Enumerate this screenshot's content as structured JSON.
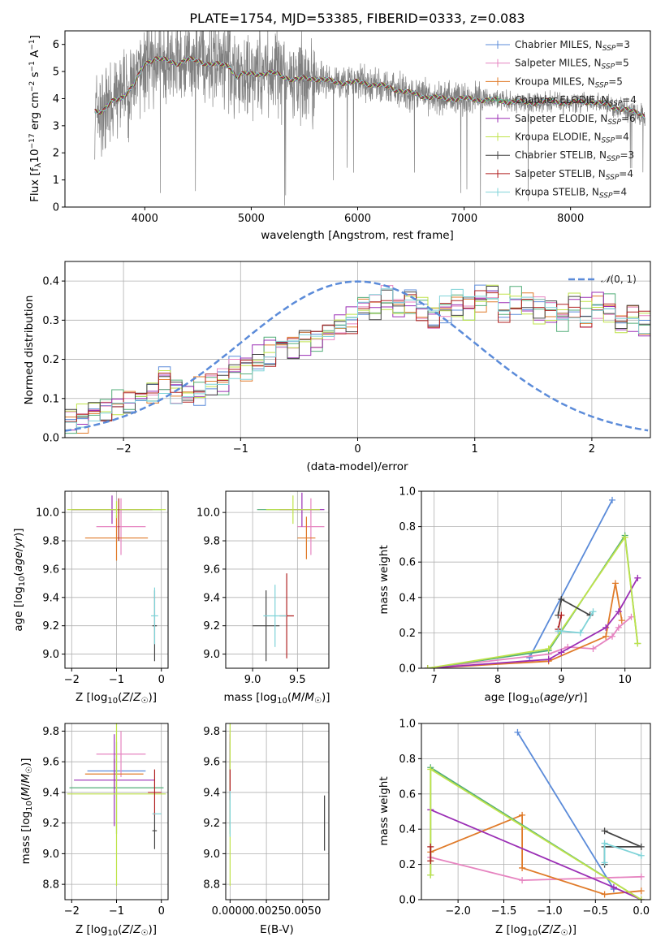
{
  "colors": {
    "Chabrier MILES": "#5b8bd9",
    "Salpeter MILES": "#e684c0",
    "Kroupa MILES": "#e07b2a",
    "Chabrier ELODIE": "#52ad78",
    "Salpeter ELODIE": "#9b2fb5",
    "Kroupa ELODIE": "#bfe34a",
    "Chabrier STELIB": "#444444",
    "Salpeter STELIB": "#b02020",
    "Kroupa STELIB": "#7fd3d8",
    "data": "#808080",
    "normal": "#5b8bd9"
  },
  "chart_data": [
    {
      "id": "spectrum",
      "type": "line",
      "title": "PLATE=1754, MJD=53385, FIBERID=0333, z=0.083",
      "xlabel": "wavelength [Angstrom, rest frame]",
      "ylabel": "Flux [f_λ10^-17 erg cm^-2 s^-1 A^-1]",
      "xlim": [
        3250,
        8750
      ],
      "ylim": [
        0,
        6.5
      ],
      "xticks": [
        4000,
        5000,
        6000,
        7000,
        8000
      ],
      "yticks": [
        0,
        1,
        2,
        3,
        4,
        5,
        6
      ],
      "continuum": {
        "x": [
          3530,
          3600,
          3700,
          3800,
          3900,
          4000,
          4100,
          4200,
          4300,
          4400,
          4600,
          4800,
          4860,
          4900,
          5000,
          5200,
          5400,
          5600,
          5800,
          6000,
          6200,
          6400,
          6600,
          6800,
          7000,
          7200,
          7400,
          7600,
          7800,
          8000,
          8200,
          8400,
          8700
        ],
        "y": [
          3.6,
          3.5,
          3.9,
          4.1,
          4.5,
          5.3,
          5.5,
          5.4,
          5.3,
          5.45,
          5.3,
          5.2,
          4.8,
          4.9,
          4.9,
          4.95,
          4.7,
          4.75,
          4.6,
          4.6,
          4.5,
          4.3,
          4.1,
          4.0,
          4.0,
          3.95,
          3.9,
          3.85,
          3.9,
          3.85,
          3.9,
          3.7,
          3.4
        ]
      },
      "legend": [
        {
          "label": "Chabrier MILES, N_SSP=3"
        },
        {
          "label": "Salpeter MILES, N_SSP=5"
        },
        {
          "label": "Kroupa MILES, N_SSP=5"
        },
        {
          "label": "Chabrier ELODIE, N_SSP=4"
        },
        {
          "label": "Salpeter ELODIE, N_SSP=6"
        },
        {
          "label": "Kroupa ELODIE, N_SSP=4"
        },
        {
          "label": "Chabrier STELIB, N_SSP=3"
        },
        {
          "label": "Salpeter STELIB, N_SSP=4"
        },
        {
          "label": "Kroupa STELIB, N_SSP=4"
        }
      ]
    },
    {
      "id": "residuals",
      "type": "line",
      "xlabel": "(data-model)/error",
      "ylabel": "Normed distribution",
      "xlim": [
        -2.5,
        2.5
      ],
      "ylim": [
        0,
        0.45
      ],
      "xticks": [
        -2,
        -1,
        0,
        1,
        2
      ],
      "yticks": [
        0.0,
        0.1,
        0.2,
        0.3,
        0.4
      ],
      "legend": "N(0,1)",
      "bin_width": 0.1,
      "bin_start": -2.5,
      "mean_hist": [
        0.045,
        0.05,
        0.07,
        0.08,
        0.09,
        0.085,
        0.1,
        0.115,
        0.15,
        0.125,
        0.13,
        0.12,
        0.135,
        0.14,
        0.17,
        0.18,
        0.2,
        0.22,
        0.24,
        0.23,
        0.25,
        0.26,
        0.27,
        0.29,
        0.3,
        0.32,
        0.33,
        0.35,
        0.33,
        0.35,
        0.33,
        0.31,
        0.33,
        0.34,
        0.33,
        0.35,
        0.36,
        0.33,
        0.35,
        0.34,
        0.33,
        0.32,
        0.31,
        0.33,
        0.32,
        0.34,
        0.33,
        0.3,
        0.31,
        0.29,
        0.28,
        0.25,
        0.25,
        0.24,
        0.22,
        0.2,
        0.18,
        0.16,
        0.15,
        0.14,
        0.13,
        0.13,
        0.12,
        0.12,
        0.11,
        0.1,
        0.09,
        0.08,
        0.07,
        0.06,
        0.05,
        0.05,
        0.045,
        0.04,
        0.04,
        0.035,
        0.04,
        0.03,
        0.035,
        0.04
      ]
    },
    {
      "id": "z-age",
      "type": "scatter",
      "xlabel": "Z [log10(Z/Z_sun)]",
      "ylabel": "age  [log10(age/yr)]",
      "xlim": [
        -2.15,
        0.15
      ],
      "ylim": [
        8.9,
        10.15
      ],
      "xticks": [
        -2,
        -1,
        0
      ],
      "yticks": [
        9.0,
        9.2,
        9.4,
        9.6,
        9.8,
        10.0
      ],
      "points": [
        {
          "model": "Chabrier MILES",
          "x": -0.7,
          "xerr": 0.0,
          "y": 9.82,
          "yerr": 0.0
        },
        {
          "model": "Salpeter MILES",
          "x": -0.9,
          "xerr": 0.55,
          "y": 9.9,
          "yerr": 0.2
        },
        {
          "model": "Kroupa MILES",
          "x": -1.0,
          "xerr": 0.7,
          "y": 9.82,
          "yerr": 0.16
        },
        {
          "model": "Chabrier ELODIE",
          "x": -1.0,
          "xerr": 1.0,
          "y": 10.02,
          "yerr": 0.0
        },
        {
          "model": "Salpeter ELODIE",
          "x": -1.1,
          "xerr": 0.9,
          "y": 10.02,
          "yerr": 0.1
        },
        {
          "model": "Kroupa ELODIE",
          "x": -1.0,
          "xerr": 1.1,
          "y": 10.02,
          "yerr": 0.06
        },
        {
          "model": "Chabrier STELIB",
          "x": -0.15,
          "xerr": 0.05,
          "y": 9.2,
          "yerr": 0.25
        },
        {
          "model": "Salpeter STELIB",
          "x": -0.95,
          "xerr": 0.0,
          "y": 9.95,
          "yerr": 0.15
        },
        {
          "model": "Kroupa STELIB",
          "x": -0.15,
          "xerr": 0.08,
          "y": 9.27,
          "yerr": 0.2
        }
      ]
    },
    {
      "id": "mass-age",
      "type": "scatter",
      "xlabel": "mass [log10(M/M_sun)]",
      "ylabel": "",
      "xlim": [
        8.7,
        9.85
      ],
      "ylim": [
        8.9,
        10.15
      ],
      "xticks": [
        9.0,
        9.5
      ],
      "yticks": [
        9.0,
        9.2,
        9.4,
        9.6,
        9.8,
        10.0
      ],
      "points": [
        {
          "model": "Chabrier MILES",
          "x": 9.58,
          "xerr": 0.0,
          "y": 9.82,
          "yerr": 0.0
        },
        {
          "model": "Salpeter MILES",
          "x": 9.65,
          "xerr": 0.15,
          "y": 9.9,
          "yerr": 0.2
        },
        {
          "model": "Kroupa MILES",
          "x": 9.6,
          "xerr": 0.1,
          "y": 9.82,
          "yerr": 0.15
        },
        {
          "model": "Chabrier ELODIE",
          "x": 9.4,
          "xerr": 0.35,
          "y": 10.02,
          "yerr": 0.0
        },
        {
          "model": "Salpeter ELODIE",
          "x": 9.55,
          "xerr": 0.25,
          "y": 10.02,
          "yerr": 0.12
        },
        {
          "model": "Kroupa ELODIE",
          "x": 9.45,
          "xerr": 0.3,
          "y": 10.02,
          "yerr": 0.1
        },
        {
          "model": "Chabrier STELIB",
          "x": 9.15,
          "xerr": 0.15,
          "y": 9.2,
          "yerr": 0.25
        },
        {
          "model": "Salpeter STELIB",
          "x": 9.38,
          "xerr": 0.08,
          "y": 9.27,
          "yerr": 0.3
        },
        {
          "model": "Kroupa STELIB",
          "x": 9.25,
          "xerr": 0.13,
          "y": 9.27,
          "yerr": 0.22
        }
      ]
    },
    {
      "id": "age-weight",
      "type": "line",
      "xlabel": "age  [log10(age/yr)]",
      "ylabel": "mass weight",
      "xlim": [
        6.8,
        10.4
      ],
      "ylim": [
        0,
        1.0
      ],
      "xticks": [
        7,
        8,
        9,
        10
      ],
      "yticks": [
        0.0,
        0.2,
        0.4,
        0.6,
        0.8,
        1.0
      ],
      "series": [
        {
          "model": "Chabrier MILES",
          "x": [
            8.5,
            9.8
          ],
          "y": [
            0.06,
            0.95
          ]
        },
        {
          "model": "Salpeter MILES",
          "x": [
            6.9,
            8.8,
            9.1,
            9.5,
            9.8,
            9.9,
            10.1
          ],
          "y": [
            0.0,
            0.08,
            0.12,
            0.11,
            0.18,
            0.23,
            0.29
          ]
        },
        {
          "model": "Kroupa MILES",
          "x": [
            6.9,
            8.8,
            9.7,
            9.85,
            9.95
          ],
          "y": [
            0.0,
            0.04,
            0.18,
            0.48,
            0.27
          ]
        },
        {
          "model": "Chabrier ELODIE",
          "x": [
            6.9,
            8.8,
            10.0,
            10.2
          ],
          "y": [
            0.0,
            0.1,
            0.75,
            0.14
          ]
        },
        {
          "model": "Salpeter ELODIE",
          "x": [
            6.9,
            8.8,
            9.0,
            9.7,
            9.9,
            10.2
          ],
          "y": [
            0.0,
            0.05,
            0.09,
            0.23,
            0.32,
            0.51
          ]
        },
        {
          "model": "Kroupa ELODIE",
          "x": [
            6.9,
            8.8,
            10.0,
            10.2
          ],
          "y": [
            0.0,
            0.11,
            0.74,
            0.14
          ]
        },
        {
          "model": "Chabrier STELIB",
          "x": [
            8.95,
            9.0,
            9.45
          ],
          "y": [
            0.3,
            0.39,
            0.3
          ]
        },
        {
          "model": "Salpeter STELIB",
          "x": [
            8.95,
            9.0
          ],
          "y": [
            0.22,
            0.3
          ]
        },
        {
          "model": "Kroupa STELIB",
          "x": [
            8.95,
            9.0,
            9.3,
            9.5
          ],
          "y": [
            0.21,
            0.21,
            0.2,
            0.32
          ]
        }
      ]
    },
    {
      "id": "z-mass",
      "type": "scatter",
      "xlabel": "Z [log10(Z/Z_sun)]",
      "ylabel": "mass [log10(M/M_sun)]",
      "xlim": [
        -2.15,
        0.15
      ],
      "ylim": [
        8.7,
        9.85
      ],
      "xticks": [
        -2,
        -1,
        0
      ],
      "yticks": [
        8.8,
        9.0,
        9.2,
        9.4,
        9.6,
        9.8
      ],
      "points": [
        {
          "model": "Chabrier MILES",
          "x": -1.0,
          "xerr": 0.65,
          "y": 9.54,
          "yerr": 0.0
        },
        {
          "model": "Salpeter MILES",
          "x": -0.9,
          "xerr": 0.55,
          "y": 9.65,
          "yerr": 0.15
        },
        {
          "model": "Kroupa MILES",
          "x": -1.05,
          "xerr": 0.65,
          "y": 9.52,
          "yerr": 0.1
        },
        {
          "model": "Chabrier ELODIE",
          "x": -1.0,
          "xerr": 1.05,
          "y": 9.43,
          "yerr": 0.3
        },
        {
          "model": "Salpeter ELODIE",
          "x": -1.05,
          "xerr": 0.9,
          "y": 9.48,
          "yerr": 0.3
        },
        {
          "model": "Kroupa ELODIE",
          "x": -1.0,
          "xerr": 1.1,
          "y": 9.39,
          "yerr": 0.6
        },
        {
          "model": "Chabrier STELIB",
          "x": -0.15,
          "xerr": 0.05,
          "y": 9.15,
          "yerr": 0.12
        },
        {
          "model": "Salpeter STELIB",
          "x": -0.15,
          "xerr": 0.15,
          "y": 9.4,
          "yerr": 0.15
        },
        {
          "model": "Kroupa STELIB",
          "x": -0.1,
          "xerr": 0.1,
          "y": 9.26,
          "yerr": 0.0
        }
      ]
    },
    {
      "id": "ebv-mass",
      "type": "scatter",
      "xlabel": "E(B-V)",
      "ylabel": "",
      "xlim": [
        -0.0003,
        0.0068
      ],
      "ylim": [
        8.7,
        9.85
      ],
      "xticks": [
        0.0,
        0.0025,
        0.005
      ],
      "xtick_labels": [
        "0.0000",
        "0.0025",
        "0.0050"
      ],
      "yticks": [
        8.8,
        9.0,
        9.2,
        9.4,
        9.6,
        9.8
      ],
      "points": [
        {
          "model": "Chabrier MILES",
          "x": 0.0,
          "xerr": 0.0,
          "y": 9.54,
          "yerr": 0.05
        },
        {
          "model": "Salpeter MILES",
          "x": 0.0,
          "xerr": 0.0,
          "y": 9.65,
          "yerr": 0.15
        },
        {
          "model": "Kroupa MILES",
          "x": 0.0,
          "xerr": 0.0,
          "y": 9.52,
          "yerr": 0.1
        },
        {
          "model": "Chabrier ELODIE",
          "x": 0.0,
          "xerr": 0.0,
          "y": 9.43,
          "yerr": 0.3
        },
        {
          "model": "Salpeter ELODIE",
          "x": 0.0,
          "xerr": 0.0,
          "y": 9.48,
          "yerr": 0.3
        },
        {
          "model": "Kroupa ELODIE",
          "x": 0.0,
          "xerr": 0.0,
          "y": 9.39,
          "yerr": 0.6
        },
        {
          "model": "Chabrier STELIB",
          "x": 0.0065,
          "xerr": 0.0,
          "y": 9.2,
          "yerr": 0.18
        },
        {
          "model": "Salpeter STELIB",
          "x": 0.0,
          "xerr": 0.0,
          "y": 9.45,
          "yerr": 0.1
        },
        {
          "model": "Kroupa STELIB",
          "x": 0.0,
          "xerr": 0.0,
          "y": 9.26,
          "yerr": 0.15
        }
      ]
    },
    {
      "id": "z-weight",
      "type": "line",
      "xlabel": "Z [log10(Z/Z_sun)]",
      "ylabel": "mass weight",
      "xlim": [
        -2.4,
        0.1
      ],
      "ylim": [
        0,
        1.0
      ],
      "xticks": [
        -2.0,
        -1.5,
        -1.0,
        -0.5,
        0.0
      ],
      "yticks": [
        0.0,
        0.2,
        0.4,
        0.6,
        0.8,
        1.0
      ],
      "series": [
        {
          "model": "Chabrier MILES",
          "x": [
            -1.35,
            -0.3,
            -0.3
          ],
          "y": [
            0.95,
            0.06,
            0.06
          ]
        },
        {
          "model": "Salpeter MILES",
          "x": [
            -2.3,
            -1.3,
            0.0
          ],
          "y": [
            0.24,
            0.11,
            0.13
          ]
        },
        {
          "model": "Kroupa MILES",
          "x": [
            -2.3,
            -1.3,
            -1.3,
            -0.4,
            0.0
          ],
          "y": [
            0.27,
            0.48,
            0.18,
            0.03,
            0.05
          ]
        },
        {
          "model": "Chabrier ELODIE",
          "x": [
            -2.3,
            -2.3,
            0.0
          ],
          "y": [
            0.14,
            0.75,
            0.0
          ]
        },
        {
          "model": "Salpeter ELODIE",
          "x": [
            -2.3,
            -0.3,
            0.0
          ],
          "y": [
            0.51,
            0.07,
            0.0
          ]
        },
        {
          "model": "Kroupa ELODIE",
          "x": [
            -2.3,
            -2.3,
            0.0
          ],
          "y": [
            0.14,
            0.74,
            0.0
          ]
        },
        {
          "model": "Chabrier STELIB",
          "x": [
            -0.4,
            0.0,
            -0.4,
            -0.4
          ],
          "y": [
            0.39,
            0.3,
            0.3,
            0.2
          ]
        },
        {
          "model": "Salpeter STELIB",
          "x": [
            -2.3,
            -2.3
          ],
          "y": [
            0.3,
            0.22
          ]
        },
        {
          "model": "Kroupa STELIB",
          "x": [
            -0.4,
            -0.4,
            0.0
          ],
          "y": [
            0.21,
            0.32,
            0.25
          ]
        }
      ]
    }
  ]
}
